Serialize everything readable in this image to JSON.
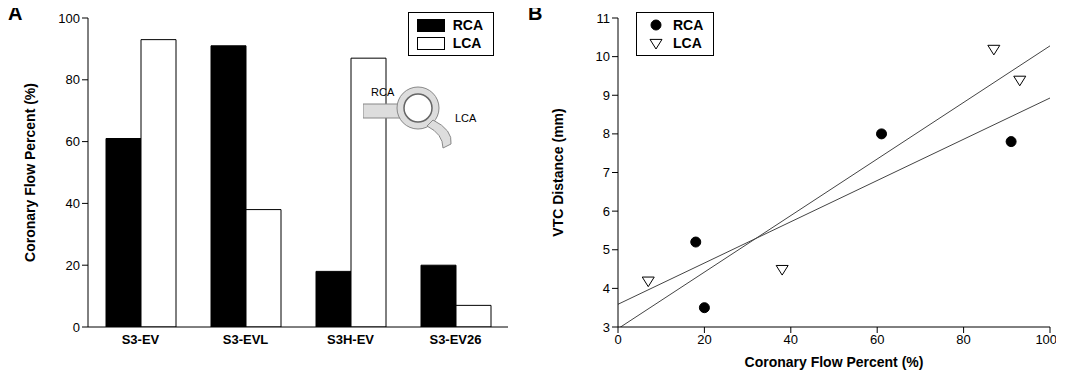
{
  "chart_data": [
    {
      "type": "bar",
      "title": "A",
      "categories": [
        "S3-EV",
        "S3-EVL",
        "S3H-EV",
        "S3-EV26"
      ],
      "series": [
        {
          "name": "RCA",
          "color": "#000000",
          "values": [
            61,
            91,
            18,
            20
          ]
        },
        {
          "name": "LCA",
          "color": "#ffffff",
          "values": [
            93,
            38,
            87,
            7
          ]
        }
      ],
      "y_label": "Coronary Flow Percent (%)",
      "ylim": [
        0,
        100
      ],
      "yticks": [
        0,
        20,
        40,
        60,
        80,
        100
      ],
      "legend": "upper right",
      "annotations": [
        "RCA",
        "LCA"
      ]
    },
    {
      "type": "scatter",
      "title": "B",
      "x_label": "Coronary Flow Percent (%)",
      "y_label": "VTC Distance (mm)",
      "xlim": [
        0,
        100
      ],
      "xticks": [
        0,
        20,
        40,
        60,
        80,
        100
      ],
      "ylim": [
        3,
        11
      ],
      "yticks": [
        3,
        4,
        5,
        6,
        7,
        8,
        9,
        10,
        11
      ],
      "legend": "upper left",
      "series": [
        {
          "name": "RCA",
          "color": "#000000",
          "marker": "circle",
          "line_style": "solid",
          "x": [
            18,
            20,
            61,
            91
          ],
          "values": [
            5.2,
            3.5,
            8.0,
            7.8
          ]
        },
        {
          "name": "LCA",
          "color": "#000000",
          "marker": "triangle-down",
          "line_style": "solid",
          "x": [
            7,
            38,
            87,
            93
          ],
          "values": [
            4.2,
            4.5,
            10.2,
            9.4
          ]
        }
      ]
    }
  ]
}
